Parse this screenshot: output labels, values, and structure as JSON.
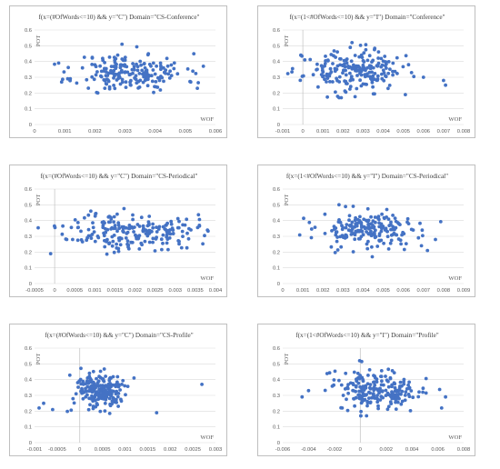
{
  "chart_data": [
    {
      "type": "scatter",
      "title": "f(x=(#OfWords<=10) && y=\"C\") Domain=\"CS-Conference\"",
      "xlabel": "WOF",
      "ylabel": "POT",
      "xlim": [
        0,
        0.006
      ],
      "ylim": [
        0,
        0.6
      ],
      "xticks": [
        "0",
        "0.001",
        "0.002",
        "0.003",
        "0.004",
        "0.005",
        "0.006"
      ],
      "yticks": [
        "0",
        "0.1",
        "0.2",
        "0.3",
        "0.4",
        "0.5",
        "0.6"
      ],
      "grid": "horizontal",
      "color": "#4472c4",
      "cluster": {
        "x_mean": 0.0032,
        "x_sd": 0.0009,
        "y_mean": 0.33,
        "y_sd": 0.06,
        "n": 200,
        "seed": 11
      },
      "points": [
        [
          0.0008,
          0.39
        ],
        [
          0.0009,
          0.27
        ],
        [
          0.0011,
          0.29
        ],
        [
          0.0054,
          0.23
        ],
        [
          0.0056,
          0.37
        ],
        [
          0.0021,
          0.2
        ],
        [
          0.0029,
          0.51
        ]
      ]
    },
    {
      "type": "scatter",
      "title": "f(x=(1<#OfWords<=10) && y=\"I\") Domain=\"Conference\"",
      "xlabel": "WOF",
      "ylabel": "POT",
      "xlim": [
        -0.001,
        0.008
      ],
      "ylim": [
        0,
        0.6
      ],
      "xticks": [
        "-0.001",
        "0",
        "0.001",
        "0.002",
        "0.003",
        "0.004",
        "0.005",
        "0.006",
        "0.007",
        "0.008"
      ],
      "yticks": [
        "0",
        "0.1",
        "0.2",
        "0.3",
        "0.4",
        "0.5",
        "0.6"
      ],
      "grid": "horizontal",
      "color": "#4472c4",
      "cluster": {
        "x_mean": 0.0025,
        "x_sd": 0.0012,
        "y_mean": 0.34,
        "y_sd": 0.065,
        "n": 210,
        "seed": 23
      },
      "points": [
        [
          -0.0001,
          0.44
        ],
        [
          0.0001,
          0.41
        ],
        [
          0.007,
          0.28
        ],
        [
          0.0071,
          0.25
        ],
        [
          0.006,
          0.3
        ],
        [
          0.0051,
          0.19
        ]
      ]
    },
    {
      "type": "scatter",
      "title": "f(x=(#OfWords<=10) && y=\"C\") Domain=\"CS-Periodical\"",
      "xlabel": "WOF",
      "ylabel": "POT",
      "xlim": [
        -0.0005,
        0.004
      ],
      "ylim": [
        0,
        0.6
      ],
      "xticks": [
        "-0.0005",
        "0",
        "0.0005",
        "0.001",
        "0.0015",
        "0.002",
        "0.0025",
        "0.003",
        "0.0035",
        "0.004"
      ],
      "yticks": [
        "0",
        "0.1",
        "0.2",
        "0.3",
        "0.4",
        "0.5",
        "0.6"
      ],
      "grid": "horizontal",
      "color": "#4472c4",
      "cluster": {
        "x_mean": 0.0019,
        "x_sd": 0.0008,
        "y_mean": 0.33,
        "y_sd": 0.06,
        "n": 210,
        "seed": 37
      },
      "points": [
        [
          -0.0001,
          0.19
        ],
        [
          0.0003,
          0.28
        ],
        [
          0.0036,
          0.37
        ],
        [
          0.0038,
          0.34
        ],
        [
          0.0009,
          0.46
        ]
      ]
    },
    {
      "type": "scatter",
      "title": "f(x=(1<#OfWords<=10) && y=\"I\") Domain=\"CS-Periodical\"",
      "xlabel": "WOF",
      "ylabel": "POT",
      "xlim": [
        0,
        0.009
      ],
      "ylim": [
        0,
        0.6
      ],
      "xticks": [
        "0",
        "0.001",
        "0.002",
        "0.003",
        "0.004",
        "0.005",
        "0.006",
        "0.007",
        "0.008",
        "0.009"
      ],
      "yticks": [
        "0",
        "0.1",
        "0.2",
        "0.3",
        "0.4",
        "0.5",
        "0.6"
      ],
      "grid": "horizontal",
      "color": "#4472c4",
      "cluster": {
        "x_mean": 0.0043,
        "x_sd": 0.0013,
        "y_mean": 0.34,
        "y_sd": 0.06,
        "n": 200,
        "seed": 53
      },
      "points": [
        [
          0.0076,
          0.28
        ],
        [
          0.0069,
          0.24
        ],
        [
          0.0072,
          0.21
        ],
        [
          0.0021,
          0.44
        ],
        [
          0.0028,
          0.5
        ]
      ]
    },
    {
      "type": "scatter",
      "title": "f(x=(#OfWords<=10) && y=\"C\") Domain=\"CS-Profile\"",
      "xlabel": "WOF",
      "ylabel": "POT",
      "xlim": [
        -0.001,
        0.003
      ],
      "ylim": [
        0,
        0.6
      ],
      "xticks": [
        "-0.001",
        "-0.0005",
        "0",
        "0.0005",
        "0.001",
        "0.0015",
        "0.002",
        "0.0025",
        "0.003"
      ],
      "yticks": [
        "0",
        "0.1",
        "0.2",
        "0.3",
        "0.4",
        "0.5",
        "0.6"
      ],
      "grid": "horizontal",
      "color": "#4472c4",
      "cluster": {
        "x_mean": 0.00045,
        "x_sd": 0.0003,
        "y_mean": 0.33,
        "y_sd": 0.06,
        "n": 210,
        "seed": 71
      },
      "points": [
        [
          -0.0009,
          0.22
        ],
        [
          -0.0008,
          0.25
        ],
        [
          -0.0006,
          0.21
        ],
        [
          0.0017,
          0.19
        ],
        [
          0.0027,
          0.37
        ],
        [
          0.0012,
          0.41
        ]
      ]
    },
    {
      "type": "scatter",
      "title": "f(x=(1<#OfWords<=10) && y=\"I\") Domain=\"Profile\"",
      "xlabel": "WOF",
      "ylabel": "POT",
      "xlim": [
        -0.006,
        0.008
      ],
      "ylim": [
        0,
        0.6
      ],
      "xticks": [
        "-0.006",
        "-0.004",
        "-0.002",
        "0",
        "0.002",
        "0.004",
        "0.006",
        "0.008"
      ],
      "yticks": [
        "0",
        "0.1",
        "0.2",
        "0.3",
        "0.4",
        "0.5",
        "0.6"
      ],
      "grid": "horizontal",
      "color": "#4472c4",
      "cluster": {
        "x_mean": 0.0015,
        "x_sd": 0.0017,
        "y_mean": 0.33,
        "y_sd": 0.065,
        "n": 210,
        "seed": 89
      },
      "points": [
        [
          -0.0045,
          0.29
        ],
        [
          -0.004,
          0.33
        ],
        [
          0.0063,
          0.22
        ],
        [
          0.0066,
          0.29
        ],
        [
          -0.0014,
          0.22
        ]
      ]
    }
  ]
}
